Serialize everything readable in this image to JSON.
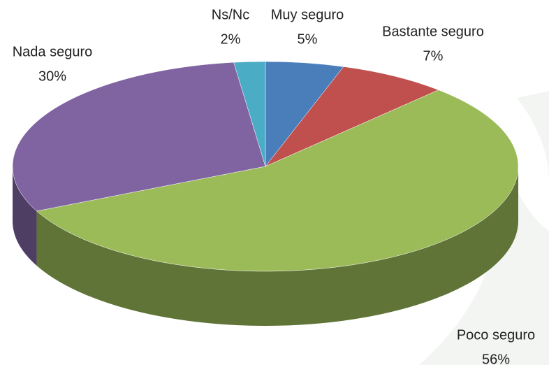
{
  "chart_data": {
    "type": "pie",
    "categories": [
      "Muy seguro",
      "Bastante seguro",
      "Poco seguro",
      "Nada seguro",
      "Ns/Nc"
    ],
    "values": [
      5,
      7,
      56,
      30,
      2
    ],
    "value_labels": [
      "5%",
      "7%",
      "56%",
      "30%",
      "2%"
    ],
    "colors": [
      "#4a7ebb",
      "#c0504d",
      "#9bbb59",
      "#8064a2",
      "#4bacc6"
    ]
  }
}
